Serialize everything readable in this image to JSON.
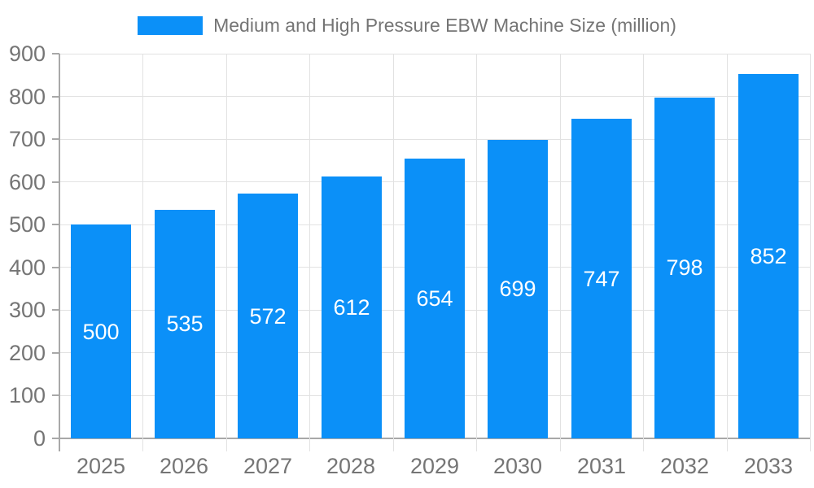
{
  "legend": {
    "label": "Medium and High Pressure EBW Machine Size (million)"
  },
  "colors": {
    "bar": "#0b90f8",
    "axis_text": "#757575",
    "grid": "#e2e2e2",
    "axis_line": "#a8a8a8",
    "value_label": "#ffffff",
    "background": "#ffffff"
  },
  "chart_data": {
    "type": "bar",
    "title": "Medium and High Pressure EBW Machine Size (million)",
    "categories": [
      "2025",
      "2026",
      "2027",
      "2028",
      "2029",
      "2030",
      "2031",
      "2032",
      "2033"
    ],
    "values": [
      500,
      535,
      572,
      612,
      654,
      699,
      747,
      798,
      852
    ],
    "series": [
      {
        "name": "Medium and High Pressure EBW Machine Size (million)",
        "values": [
          500,
          535,
          572,
          612,
          654,
          699,
          747,
          798,
          852
        ]
      }
    ],
    "xlabel": "",
    "ylabel": "",
    "ylim": [
      0,
      900
    ],
    "ytick_step": 100,
    "yticks": [
      0,
      100,
      200,
      300,
      400,
      500,
      600,
      700,
      800,
      900
    ],
    "grid": true,
    "legend_position": "top",
    "bar_labels_position": "inside-center",
    "bar_label_color": "#ffffff"
  }
}
